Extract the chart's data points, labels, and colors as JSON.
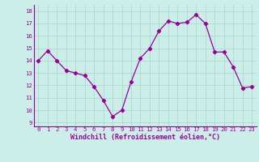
{
  "x": [
    0,
    1,
    2,
    3,
    4,
    5,
    6,
    7,
    8,
    9,
    10,
    11,
    12,
    13,
    14,
    15,
    16,
    17,
    18,
    19,
    20,
    21,
    22,
    23
  ],
  "y": [
    14.0,
    14.8,
    14.0,
    13.2,
    13.0,
    12.8,
    11.9,
    10.8,
    9.5,
    10.0,
    12.3,
    14.2,
    15.0,
    16.4,
    17.2,
    17.0,
    17.1,
    17.7,
    17.0,
    14.7,
    14.7,
    13.5,
    11.8,
    11.9
  ],
  "line_color": "#990099",
  "marker": "D",
  "marker_size": 2.2,
  "background_color": "#cceee8",
  "grid_color": "#aaddcc",
  "xlabel": "Windchill (Refroidissement éolien,°C)",
  "xlabel_color": "#990099",
  "ylabel_ticks": [
    9,
    10,
    11,
    12,
    13,
    14,
    15,
    16,
    17,
    18
  ],
  "ylim": [
    8.7,
    18.5
  ],
  "xlim": [
    -0.5,
    23.5
  ],
  "tick_color": "#990099",
  "tick_label_color": "#990099",
  "font_family": "monospace",
  "tick_fontsize": 5.2,
  "xlabel_fontsize": 6.0
}
